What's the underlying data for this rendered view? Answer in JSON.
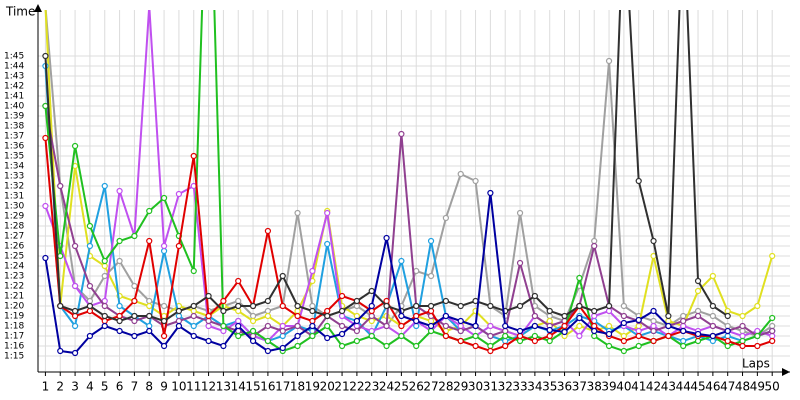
{
  "chart_data": {
    "type": "line",
    "y_label": "Time",
    "x_label": "Laps",
    "grid": true,
    "xlim": [
      0.5,
      51.2
    ],
    "ylim": [
      73.4,
      109.6
    ],
    "xticks": [
      1,
      2,
      3,
      4,
      5,
      6,
      7,
      8,
      9,
      10,
      11,
      12,
      13,
      14,
      15,
      16,
      17,
      18,
      19,
      20,
      21,
      22,
      23,
      24,
      25,
      26,
      27,
      28,
      29,
      30,
      31,
      32,
      33,
      34,
      35,
      36,
      37,
      38,
      39,
      40,
      41,
      42,
      43,
      44,
      45,
      46,
      47,
      48,
      49,
      50
    ],
    "yticks": [
      {
        "value": 75,
        "label": "1:15"
      },
      {
        "value": 76,
        "label": "1:16"
      },
      {
        "value": 77,
        "label": "1:17"
      },
      {
        "value": 78,
        "label": "1:18"
      },
      {
        "value": 79,
        "label": "1:19"
      },
      {
        "value": 80,
        "label": "1:20"
      },
      {
        "value": 81,
        "label": "1:21"
      },
      {
        "value": 82,
        "label": "1:22"
      },
      {
        "value": 83,
        "label": "1:23"
      },
      {
        "value": 84,
        "label": "1:24"
      },
      {
        "value": 85,
        "label": "1:25"
      },
      {
        "value": 86,
        "label": "1:26"
      },
      {
        "value": 87,
        "label": "1:27"
      },
      {
        "value": 88,
        "label": "1:28"
      },
      {
        "value": 89,
        "label": "1:29"
      },
      {
        "value": 90,
        "label": "1:30"
      },
      {
        "value": 91,
        "label": "1:31"
      },
      {
        "value": 92,
        "label": "1:32"
      },
      {
        "value": 93,
        "label": "1:33"
      },
      {
        "value": 94,
        "label": "1:34"
      },
      {
        "value": 95,
        "label": "1:35"
      },
      {
        "value": 96,
        "label": "1:36"
      },
      {
        "value": 97,
        "label": "1:37"
      },
      {
        "value": 98,
        "label": "1:38"
      },
      {
        "value": 99,
        "label": "1:39"
      },
      {
        "value": 100,
        "label": "1:40"
      },
      {
        "value": 101,
        "label": "1:41"
      },
      {
        "value": 102,
        "label": "1:42"
      },
      {
        "value": 103,
        "label": "1:43"
      },
      {
        "value": 104,
        "label": "1:44"
      },
      {
        "value": 105,
        "label": "1:45"
      }
    ],
    "x": [
      1,
      2,
      3,
      4,
      5,
      6,
      7,
      8,
      9,
      10,
      11,
      12,
      13,
      14,
      15,
      16,
      17,
      18,
      19,
      20,
      21,
      22,
      23,
      24,
      25,
      26,
      27,
      28,
      29,
      30,
      31,
      32,
      33,
      34,
      35,
      36,
      37,
      38,
      39,
      40,
      41,
      42,
      43,
      44,
      45,
      46,
      47,
      48,
      49,
      50
    ],
    "series": [
      {
        "color": "#a0a0a0",
        "values": [
          110,
          92,
          82,
          80.5,
          83,
          84.5,
          82,
          80.5,
          80,
          79.5,
          80,
          79.5,
          80,
          80.5,
          79,
          79.5,
          80,
          89.3,
          80,
          79,
          79.5,
          80,
          79,
          78,
          80,
          83.5,
          83,
          88.8,
          93.2,
          92.5,
          80,
          79,
          89.3,
          80,
          79,
          78.5,
          82,
          86.5,
          104.5,
          80,
          79,
          78.5,
          78,
          79,
          79.5,
          79,
          78,
          77.5,
          77,
          78
        ]
      },
      {
        "color": "#e0e020",
        "values": [
          110,
          80,
          94,
          85,
          84,
          81,
          80.5,
          80,
          79,
          80,
          79.5,
          79,
          80,
          79.5,
          78.5,
          79,
          78,
          79.5,
          82.5,
          89.5,
          80,
          79,
          78.5,
          79,
          78,
          79,
          78.5,
          77.5,
          78,
          79.5,
          78,
          77.5,
          77,
          78,
          78.5,
          77,
          78,
          77.5,
          78,
          77,
          78,
          85,
          78.5,
          78,
          81.5,
          83,
          79.5,
          79,
          80,
          85
        ]
      },
      {
        "color": "#20a0e0",
        "values": [
          104,
          80,
          78,
          86,
          92,
          80,
          79,
          78,
          85.5,
          79,
          78,
          79,
          78,
          78.5,
          77,
          76.5,
          77,
          78,
          77.5,
          86.2,
          79,
          78.5,
          77,
          80,
          84.5,
          78,
          86.5,
          79,
          77.5,
          78,
          77,
          76.5,
          77,
          78,
          77.5,
          78,
          79,
          78.5,
          77.5,
          78,
          77,
          77.5,
          77,
          76.5,
          77,
          76.5,
          77,
          76.5,
          77,
          77.5
        ]
      },
      {
        "color": "#c050f0",
        "values": [
          90,
          86,
          82,
          80,
          80.5,
          91.5,
          87,
          110,
          86,
          91.2,
          92,
          78,
          77.5,
          78.5,
          77,
          76.5,
          78,
          78,
          83.5,
          89.3,
          79,
          78,
          77.5,
          78,
          77,
          78.5,
          77.5,
          79,
          78,
          77,
          78,
          77.5,
          77,
          79,
          78,
          78.5,
          77,
          79,
          79.5,
          78,
          77.5,
          78,
          77,
          78,
          77.5,
          78,
          77.5,
          77,
          77.5,
          77
        ]
      },
      {
        "color": "#904090",
        "values": [
          100,
          92,
          86,
          82,
          80,
          79,
          78.5,
          79,
          78,
          78.5,
          79,
          78.5,
          78,
          77.5,
          77,
          78,
          77.5,
          78,
          77,
          79,
          78,
          77.5,
          79,
          78,
          97.2,
          80,
          79,
          78,
          77.5,
          78,
          77,
          77.5,
          84.3,
          79,
          78,
          78.5,
          80,
          86,
          80,
          79,
          78.5,
          77.5,
          78,
          78.5,
          79,
          78,
          77.5,
          78,
          77,
          77.5
        ]
      },
      {
        "color": "#20c020",
        "values": [
          100,
          85,
          96,
          88,
          84.5,
          86.5,
          87,
          89.5,
          90.8,
          87,
          83.5,
          130,
          78,
          77,
          77.5,
          76.5,
          75.5,
          76,
          77,
          78,
          76,
          76.5,
          77,
          76,
          77,
          76,
          77.5,
          77,
          76.5,
          77,
          76,
          77,
          76.5,
          77,
          76.5,
          77.5,
          82.8,
          77,
          76,
          75.5,
          76,
          76.5,
          77,
          76,
          76.5,
          77,
          76,
          76.5,
          77,
          78.8
        ]
      },
      {
        "color": "#e00000",
        "values": [
          96.8,
          80,
          79,
          79.5,
          78.5,
          79,
          80.5,
          86.5,
          77,
          86,
          95,
          79,
          80.5,
          82.5,
          80,
          87.5,
          80,
          79,
          78.5,
          79.5,
          81,
          80.5,
          79.5,
          80.5,
          78,
          79,
          79.5,
          77,
          76.5,
          76,
          75.5,
          76,
          77,
          76.5,
          77,
          78,
          80,
          78,
          77,
          76.5,
          77,
          76.5,
          77,
          77.5,
          77,
          77,
          76.5,
          76,
          76,
          76.5
        ]
      },
      {
        "color": "#303030",
        "values": [
          105,
          80,
          79.5,
          80,
          79,
          78.5,
          79,
          79,
          78.5,
          79.5,
          80,
          81,
          79.5,
          80,
          80,
          80.5,
          83,
          80,
          79.5,
          79,
          79.5,
          80.5,
          81.5,
          80,
          79.5,
          80,
          80,
          80.5,
          80,
          80.5,
          80,
          79.5,
          80,
          81,
          79.5,
          79,
          80,
          79.5,
          80,
          120,
          92.5,
          86.5,
          79,
          120,
          82.5,
          80,
          79,
          null,
          null,
          null
        ]
      },
      {
        "color": "#0000a0",
        "values": [
          84.8,
          75.5,
          75.3,
          77,
          78,
          77.5,
          77,
          77.5,
          76,
          78,
          77,
          76.5,
          76,
          78,
          76.5,
          75.5,
          75.8,
          77,
          78,
          76.8,
          77.2,
          78.5,
          80,
          86.8,
          79,
          78.5,
          78,
          79,
          78.5,
          78,
          91.3,
          78,
          77.5,
          78,
          77.6,
          77.4,
          78.8,
          77.5,
          77.2,
          78.3,
          78.6,
          79.5,
          78,
          77.5,
          77.2,
          77,
          77.5,
          null,
          null,
          null
        ]
      }
    ]
  }
}
